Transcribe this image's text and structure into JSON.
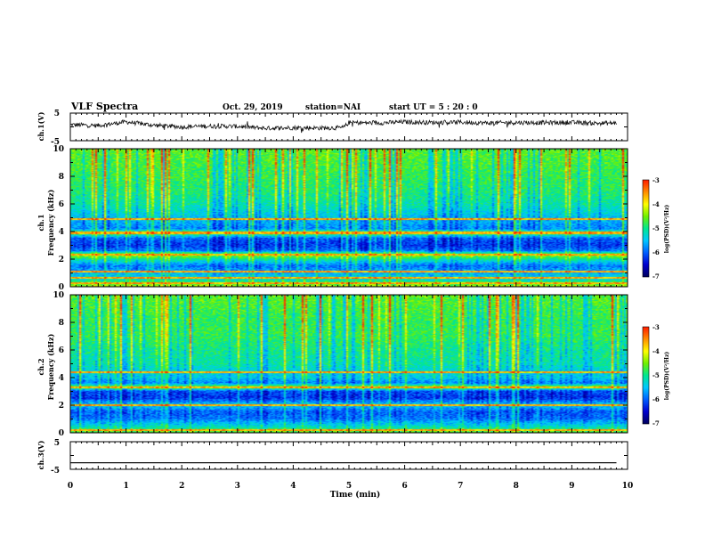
{
  "header": {
    "title": "VLF Spectra",
    "date": "Oct. 29, 2019",
    "station": "station=NAI",
    "start": "start  UT =   5 : 20 : 0"
  },
  "colors": {
    "text": "#000000",
    "trace": "#111111",
    "colormap": [
      "#000060",
      "#0000d0",
      "#0060ff",
      "#00c8ff",
      "#00e890",
      "#70f000",
      "#ffff00",
      "#ff9000",
      "#ff2000",
      "#ffffff"
    ]
  },
  "chart_data": [
    {
      "panel": "ch1-waveform",
      "type": "line",
      "ylabel": "ch.1(V)",
      "ylim": [
        -5,
        5
      ],
      "yticks": [
        "5",
        "-5"
      ],
      "xlim": [
        0,
        10
      ],
      "x": [
        0,
        0.5,
        1.0,
        1.5,
        2.0,
        2.5,
        3.0,
        3.5,
        4.0,
        4.5,
        4.9,
        5.0,
        5.5,
        6.0,
        6.5,
        7.0,
        7.5,
        8.0,
        8.5,
        9.0,
        9.5,
        9.8
      ],
      "y": [
        0.8,
        0.5,
        1.8,
        0.6,
        0.0,
        0.3,
        0.2,
        -0.5,
        -0.3,
        -0.4,
        -0.3,
        1.6,
        1.4,
        1.8,
        1.6,
        1.7,
        1.4,
        1.6,
        1.5,
        1.6,
        1.3,
        1.4
      ]
    },
    {
      "panel": "ch1-spectrogram",
      "type": "heatmap",
      "ylabel": "Frequency (kHz)",
      "channel_label": "ch.1",
      "xlim": [
        0,
        10
      ],
      "ylim": [
        0,
        10
      ],
      "yticks": [
        "0",
        "2",
        "4",
        "6",
        "8",
        "10"
      ],
      "colorbar": {
        "label": "log(PSD)(V²/Hz)",
        "range": [
          -7,
          -3
        ],
        "ticks": [
          "-3",
          "-4",
          "-5",
          "-6",
          "-7"
        ]
      },
      "profile_khz": [
        0,
        0.5,
        1.0,
        1.5,
        2.0,
        2.3,
        2.6,
        3.0,
        3.5,
        3.9,
        4.2,
        5.0,
        6.0,
        7.0,
        8.0,
        9.0,
        10.0
      ],
      "profile_log_psd": [
        -4.3,
        -5.2,
        -5.6,
        -5.9,
        -5.0,
        -4.3,
        -5.9,
        -6.2,
        -6.0,
        -4.6,
        -5.8,
        -5.5,
        -5.1,
        -4.9,
        -4.8,
        -4.7,
        -4.6
      ],
      "lines_khz": [
        0.25,
        0.6,
        1.05,
        2.3,
        3.9,
        4.9
      ]
    },
    {
      "panel": "ch2-spectrogram",
      "type": "heatmap",
      "ylabel": "Frequency (kHz)",
      "channel_label": "ch.2",
      "xlim": [
        0,
        10
      ],
      "ylim": [
        0,
        10
      ],
      "yticks": [
        "0",
        "2",
        "4",
        "6",
        "8",
        "10"
      ],
      "colorbar": {
        "label": "log(PSD)(V²/Hz)",
        "range": [
          -7,
          -3
        ],
        "ticks": [
          "-3",
          "-4",
          "-5",
          "-6",
          "-7"
        ]
      },
      "profile_khz": [
        0,
        0.5,
        1.0,
        1.5,
        2.0,
        2.5,
        3.0,
        3.3,
        3.6,
        4.0,
        4.5,
        5.0,
        6.0,
        7.0,
        8.0,
        9.0,
        10.0
      ],
      "profile_log_psd": [
        -4.6,
        -5.3,
        -5.9,
        -6.0,
        -5.4,
        -6.2,
        -6.1,
        -4.4,
        -5.8,
        -5.4,
        -5.3,
        -5.1,
        -5.0,
        -4.8,
        -4.8,
        -4.7,
        -4.6
      ],
      "lines_khz": [
        0.15,
        2.0,
        3.3,
        4.4
      ]
    },
    {
      "panel": "ch3-waveform",
      "type": "line",
      "ylabel": "ch.3(V)",
      "ylim": [
        -5,
        5
      ],
      "yticks": [
        "5",
        "-5"
      ],
      "xlim": [
        0,
        10
      ],
      "x": [
        0,
        9.8
      ],
      "y": [
        -2.6,
        -2.6
      ]
    }
  ],
  "xaxis": {
    "label": "Time (min)",
    "ticks": [
      "0",
      "1",
      "2",
      "3",
      "4",
      "5",
      "6",
      "7",
      "8",
      "9",
      "10"
    ]
  }
}
